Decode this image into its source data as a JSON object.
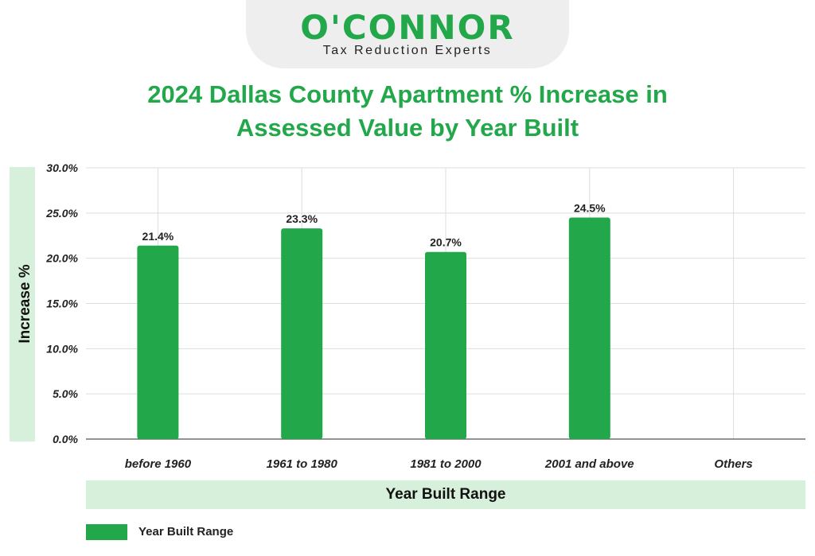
{
  "logo": {
    "wordmark": "O'CONNOR",
    "tagline": "Tax Reduction Experts"
  },
  "colors": {
    "brand": "#22a84a",
    "label_box": "#d7f0dc",
    "grid": "#dddddd"
  },
  "chart_data": {
    "type": "bar",
    "title_lines": [
      "2024 Dallas County Apartment % Increase in",
      "Assessed Value by Year Built"
    ],
    "xlabel": "Year Built Range",
    "ylabel": "Increase %",
    "categories": [
      "before 1960",
      "1961 to 1980",
      "1981 to 2000",
      "2001 and above",
      "Others"
    ],
    "series": [
      {
        "name": "Year Built Range",
        "values": [
          21.4,
          23.3,
          20.7,
          24.5,
          null
        ],
        "data_labels": [
          "21.4%",
          "23.3%",
          "20.7%",
          "24.5%",
          ""
        ]
      }
    ],
    "ylim": [
      0,
      30
    ],
    "yticks": [
      0,
      5,
      10,
      15,
      20,
      25,
      30
    ],
    "ytick_labels": [
      "0.0%",
      "5.0%",
      "10.0%",
      "15.0%",
      "20.0%",
      "25.0%",
      "30.0%"
    ],
    "grid": true,
    "legend_position": "bottom-left"
  }
}
